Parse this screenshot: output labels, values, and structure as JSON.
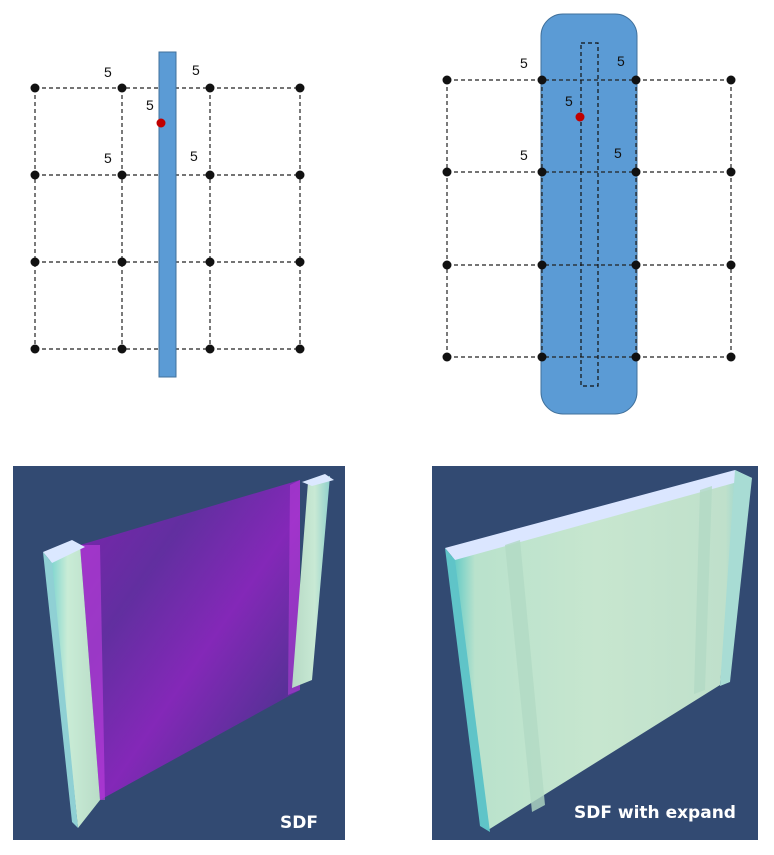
{
  "diagrams": [
    {
      "id": "sdf-without-expand",
      "cell_labels": [
        "5",
        "5",
        "5",
        "5",
        "5"
      ]
    },
    {
      "id": "sdf-with-expand",
      "cell_labels": [
        "5",
        "5",
        "5",
        "5",
        "5"
      ]
    }
  ],
  "renders": [
    {
      "id": "render-sdf",
      "caption": "SDF"
    },
    {
      "id": "render-sdf-expand",
      "caption": "SDF with expand"
    }
  ],
  "colors": {
    "obstacle_fill": "#5b9bd5",
    "obstacle_stroke": "#41719c",
    "grid_line": "#222222",
    "grid_node": "#111111",
    "sample_point": "#c00000",
    "render_bg": "#324a72",
    "panel_face": "#c2e2cb",
    "panel_edge": "#dbe8ff",
    "panel_interior": "#a01fc9"
  },
  "icons": {
    "grid-node": "filled circle",
    "sample-point": "red filled circle"
  }
}
